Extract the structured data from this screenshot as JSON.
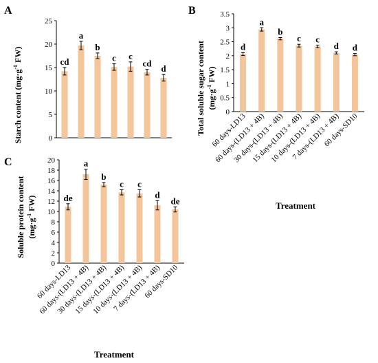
{
  "chart_data": [
    {
      "type": "bar",
      "panel": "A",
      "ylabel_main": "Starch content (mg·g",
      "ylabel_sup": "-1",
      "ylabel_tail": " FW)",
      "ylim": [
        0,
        25
      ],
      "yticks": [
        0,
        5,
        10,
        15,
        20,
        25
      ],
      "values": [
        14.2,
        19.7,
        17.5,
        15.1,
        15.2,
        14.0,
        12.8
      ],
      "errors": [
        0.8,
        0.9,
        0.6,
        0.7,
        1.0,
        0.6,
        0.7
      ],
      "significance": [
        "cd",
        "a",
        "b",
        "c",
        "c",
        "cd",
        "d"
      ]
    },
    {
      "type": "bar",
      "panel": "B",
      "ylabel_main": "Total soluble sugar content",
      "ylabel2_main": "(mg·g",
      "ylabel2_sup": "-1",
      "ylabel2_tail": " FW)",
      "ylim": [
        0,
        3.5
      ],
      "yticks": [
        0,
        0.5,
        1,
        1.5,
        2,
        2.5,
        3,
        3.5
      ],
      "values": [
        2.06,
        2.94,
        2.61,
        2.36,
        2.33,
        2.1,
        2.04
      ],
      "errors": [
        0.05,
        0.06,
        0.04,
        0.05,
        0.05,
        0.04,
        0.04
      ],
      "significance": [
        "d",
        "a",
        "b",
        "c",
        "c",
        "d",
        "d"
      ],
      "categories": [
        "60 days-LD13",
        "60 days-(LD13 + 4B)",
        "30 days-(LD13 + 4B)",
        "15 days-(LD13 + 4B)",
        "10 days-(LD13 + 4B)",
        "7 days-(LD13 + 4B)",
        "60 days-SD10"
      ],
      "xlabel": "Treatment"
    },
    {
      "type": "bar",
      "panel": "C",
      "ylabel_main": "Soluble protein content",
      "ylabel2_main": "(mg·g",
      "ylabel2_sup": "-1",
      "ylabel2_tail": " FW)",
      "ylim": [
        0,
        20
      ],
      "yticks": [
        0,
        2,
        4,
        6,
        8,
        10,
        12,
        14,
        16,
        18,
        20
      ],
      "values": [
        10.9,
        17.2,
        15.2,
        13.7,
        13.5,
        11.2,
        10.4
      ],
      "errors": [
        0.6,
        1.0,
        0.4,
        0.5,
        0.7,
        0.9,
        0.5
      ],
      "significance": [
        "de",
        "a",
        "b",
        "c",
        "c",
        "d",
        "de"
      ],
      "categories": [
        "60 days-LD13",
        "60 days-(LD13 + 4B)",
        "30 days-(LD13 + 4B)",
        "15 days-(LD13 + 4B)",
        "10 days-(LD13 + 4B)",
        "7 days-(LD13 + 4B)",
        "60 days-SD10"
      ],
      "xlabel": "Treatment"
    }
  ]
}
